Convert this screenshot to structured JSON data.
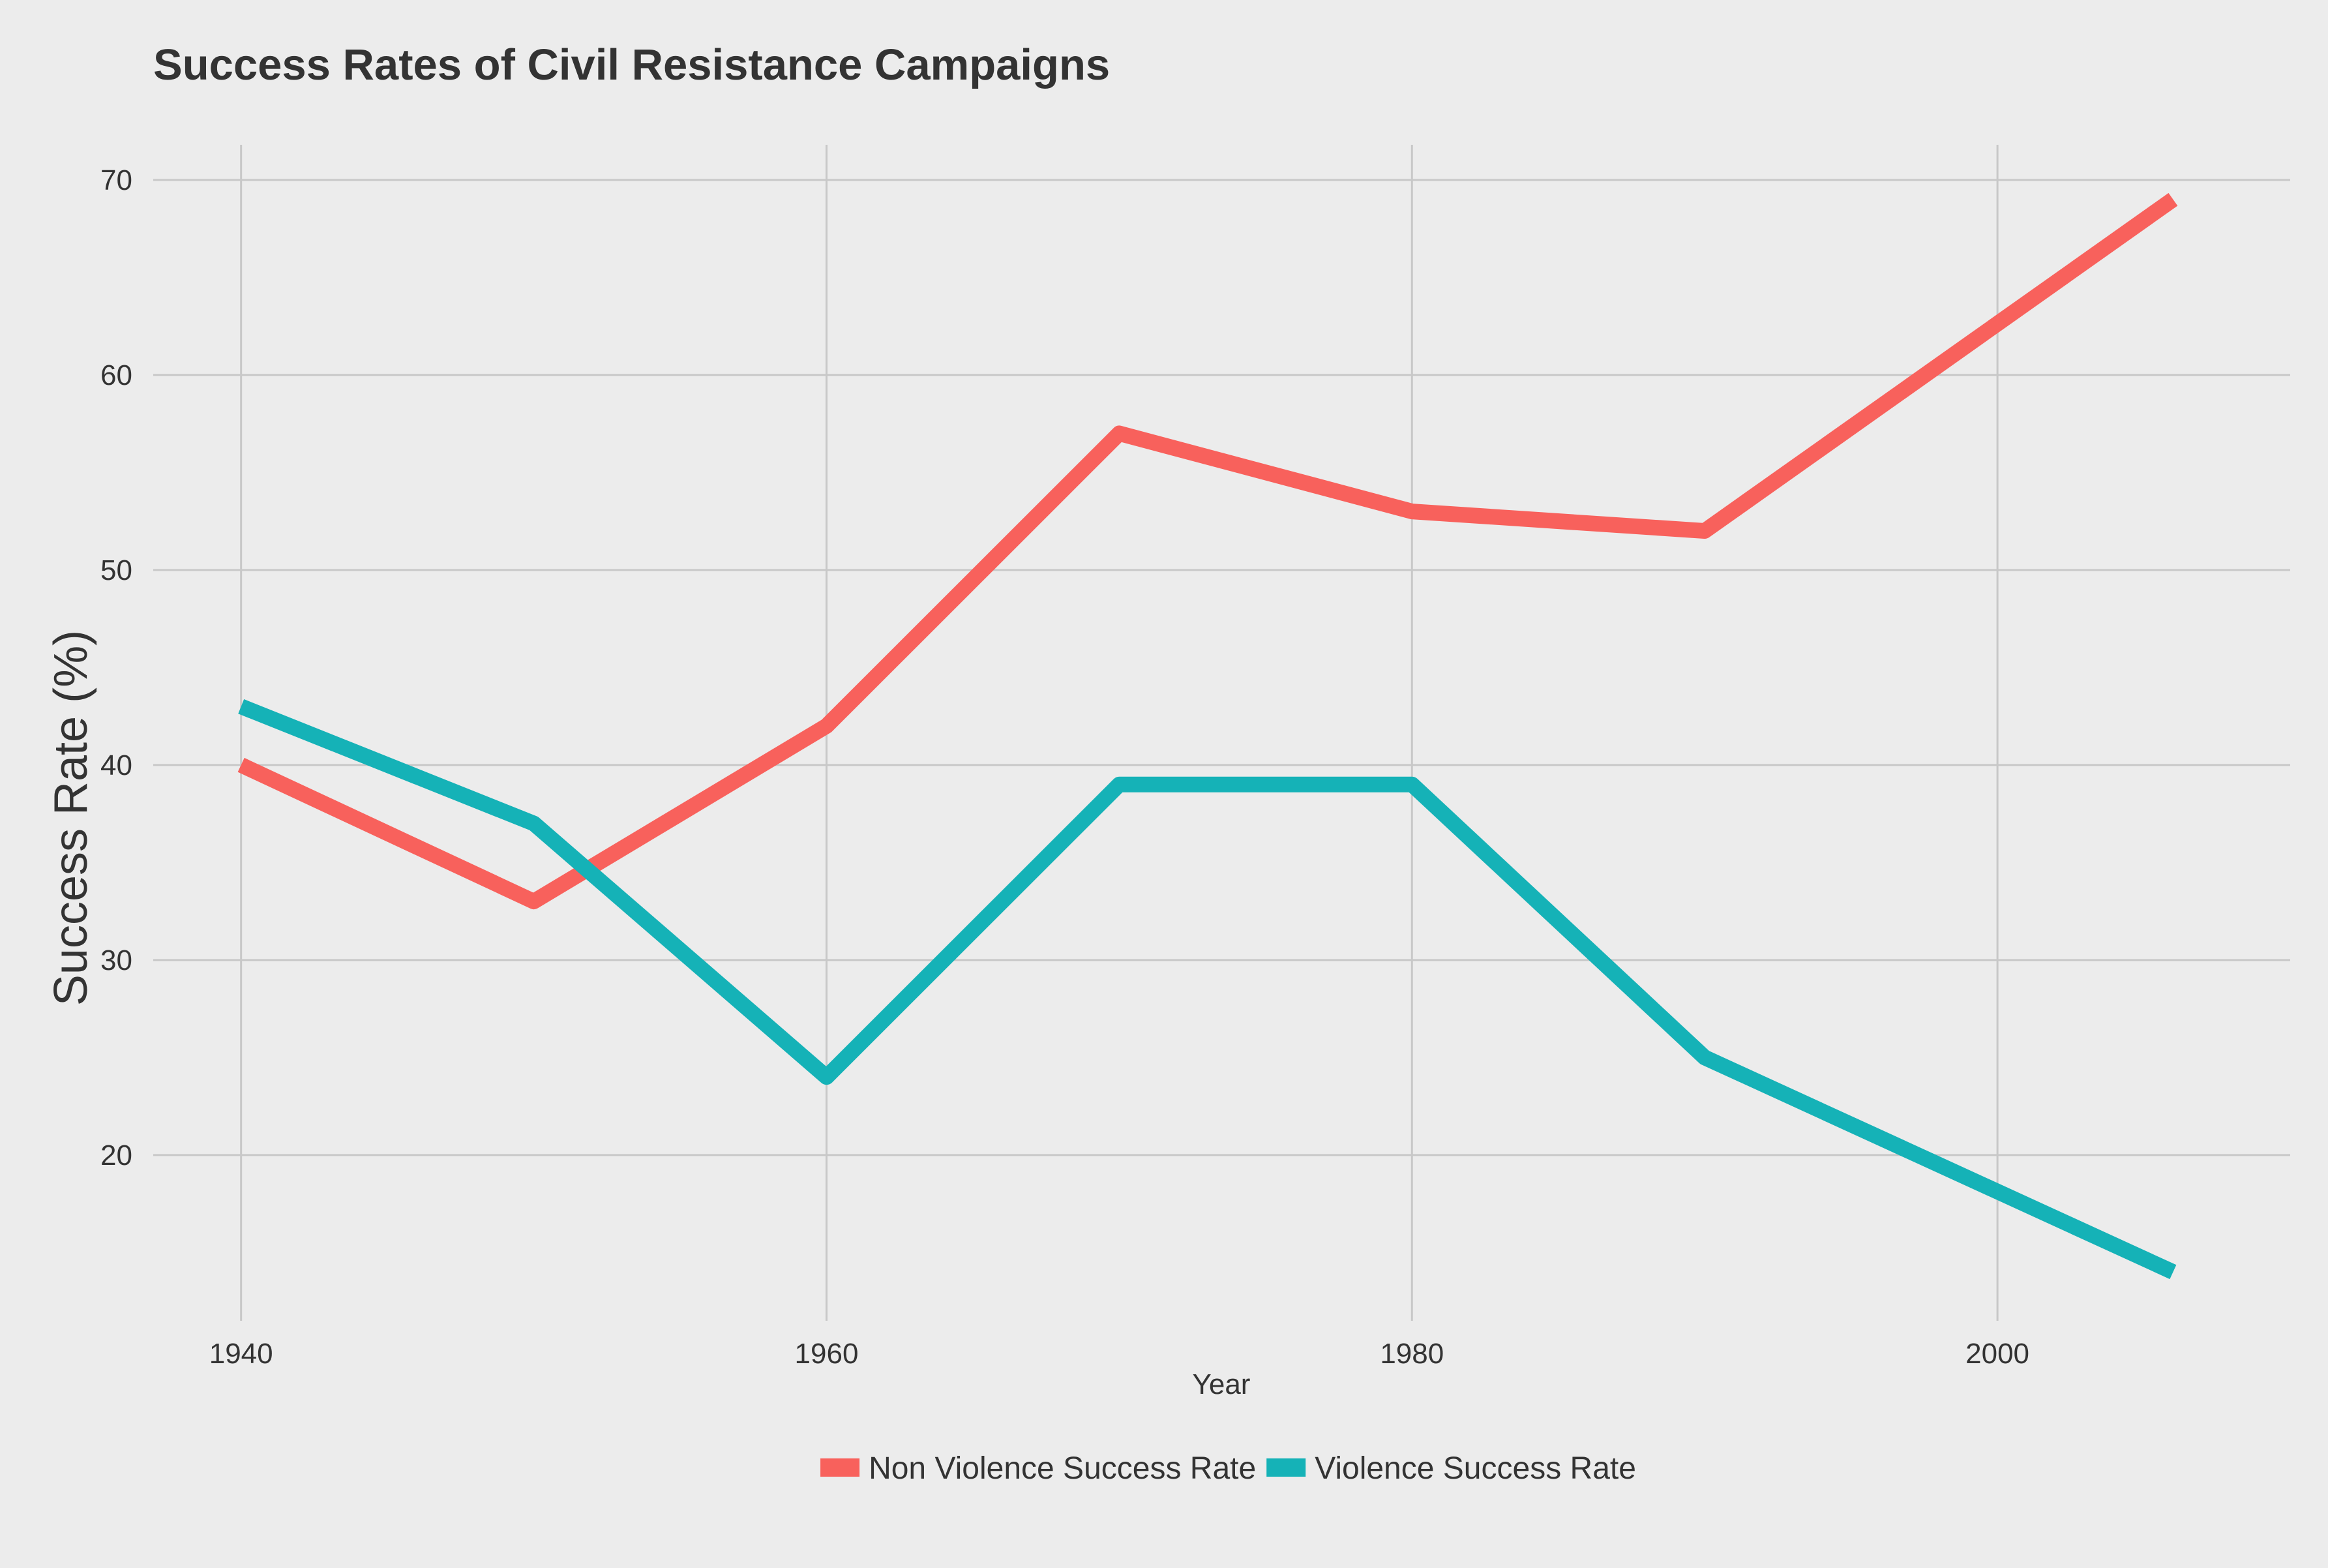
{
  "chart_data": {
    "type": "line",
    "title": "Success Rates of Civil Resistance Campaigns",
    "xlabel": "Year",
    "ylabel": "Success Rate (%)",
    "x": [
      1940,
      1950,
      1960,
      1970,
      1980,
      1990,
      2006
    ],
    "xlim": [
      1937,
      2010
    ],
    "ylim": [
      11.5,
      71.8
    ],
    "xticks": [
      1940,
      1960,
      1980,
      2000
    ],
    "yticks": [
      20,
      30,
      40,
      50,
      60,
      70
    ],
    "grid": true,
    "legend_position": "bottom",
    "series": [
      {
        "name": "Non Violence Success Rate",
        "color": "#F8615C",
        "values": [
          40,
          33,
          42,
          57,
          53,
          52,
          69
        ]
      },
      {
        "name": "Violence Success Rate",
        "color": "#15B2B7",
        "values": [
          43,
          37,
          24,
          39,
          39,
          25,
          14
        ]
      }
    ]
  }
}
